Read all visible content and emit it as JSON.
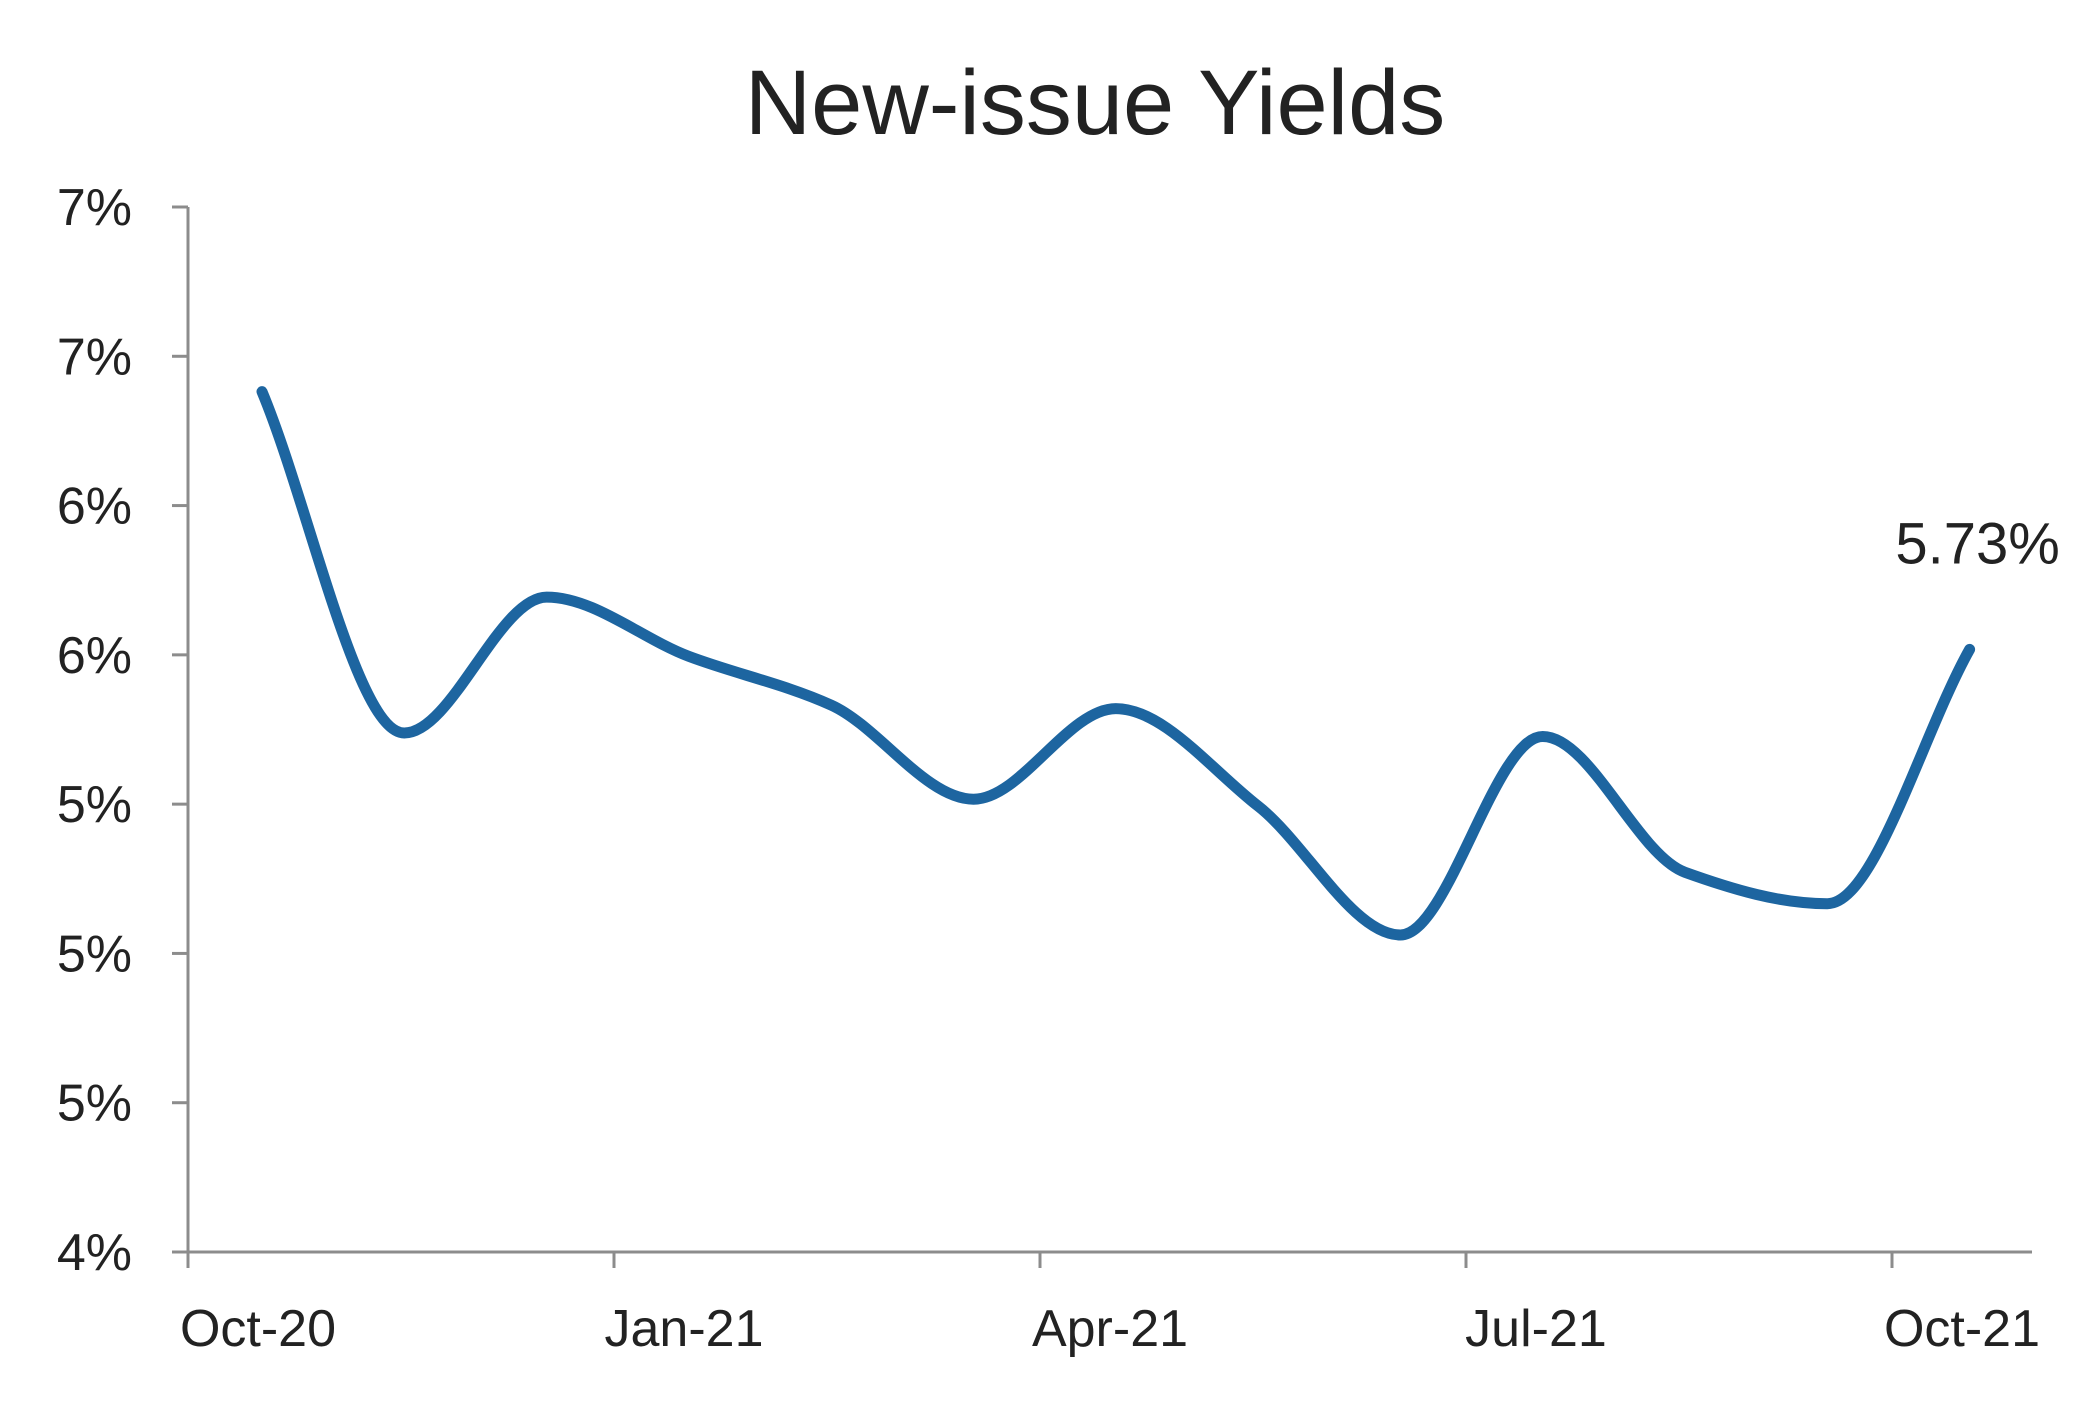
{
  "chart_data": {
    "type": "line",
    "title": "New-issue Yields",
    "xlabel": "",
    "ylabel": "",
    "x_tick_labels": [
      "Oct-20",
      "Jan-21",
      "Apr-21",
      "Jul-21",
      "Oct-21"
    ],
    "y_tick_labels": [
      "4%",
      "5%",
      "5%",
      "5%",
      "6%",
      "6%",
      "7%",
      "7%"
    ],
    "ylim": [
      4.0,
      7.0
    ],
    "x": [
      "Oct-20",
      "Nov-20",
      "Dec-20",
      "Jan-21",
      "Feb-21",
      "Mar-21",
      "Apr-21",
      "May-21",
      "Jun-21",
      "Jul-21",
      "Aug-21",
      "Sep-21",
      "Oct-21"
    ],
    "series": [
      {
        "values": [
          6.47,
          5.49,
          5.88,
          5.71,
          5.57,
          5.3,
          5.56,
          5.28,
          4.91,
          5.48,
          5.09,
          5.0,
          5.73
        ],
        "color": "#1d65a0"
      }
    ],
    "annotations": [
      {
        "text": "5.73%"
      }
    ],
    "grid": false,
    "legend": "none"
  }
}
